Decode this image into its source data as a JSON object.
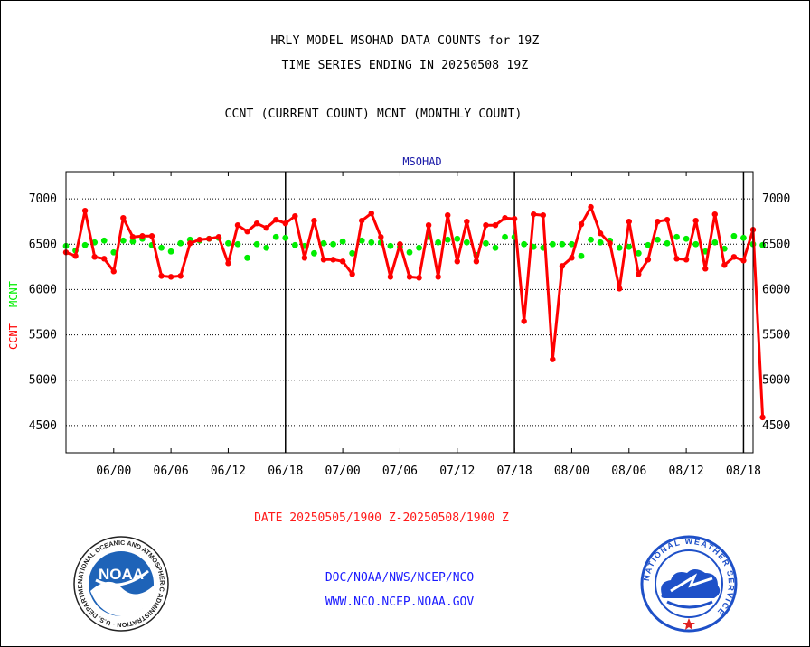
{
  "header": {
    "line1": "HRLY MODEL MSOHAD DATA COUNTS for 19Z",
    "line2": "TIME SERIES ENDING IN 20250508 19Z",
    "line3": "CCNT (CURRENT COUNT) MCNT (MONTHLY COUNT)"
  },
  "footer": {
    "date_range": "DATE 20250505/1900 Z-20250508/1900 Z",
    "org_path": "DOC/NOAA/NWS/NCEP/NCO",
    "website": "WWW.NCO.NCEP.NOAA.GOV"
  },
  "logos": {
    "noaa_text": "NOAA",
    "noaa_ring_text": "NATIONAL OCEANIC AND ATMOSPHERIC ADMINISTRATION · U.S. DEPARTMENT OF COMMERCE",
    "nws_ring_text": "NATIONAL WEATHER SERVICE"
  },
  "colors": {
    "ccnt": "#ff0000",
    "mcnt": "#00ee00",
    "axis_text": "#000000",
    "link": "#1a1aff"
  },
  "chart_data": {
    "type": "line",
    "title": "MSOHAD",
    "xlabel": "",
    "ylabel_ccnt": "CCNT",
    "ylabel_mcnt": "MCNT",
    "ylim": [
      4200,
      7300
    ],
    "yticks": [
      4500,
      5000,
      5500,
      6000,
      6500,
      7000
    ],
    "xlim": [
      0,
      72
    ],
    "xticks": [
      {
        "x": 5,
        "label": "06/00"
      },
      {
        "x": 11,
        "label": "06/06"
      },
      {
        "x": 17,
        "label": "06/12"
      },
      {
        "x": 23,
        "label": "06/18"
      },
      {
        "x": 29,
        "label": "07/00"
      },
      {
        "x": 35,
        "label": "07/06"
      },
      {
        "x": 41,
        "label": "07/12"
      },
      {
        "x": 47,
        "label": "07/18"
      },
      {
        "x": 53,
        "label": "08/00"
      },
      {
        "x": 59,
        "label": "08/06"
      },
      {
        "x": 65,
        "label": "08/12"
      },
      {
        "x": 71,
        "label": "08/18"
      }
    ],
    "day_boundaries": [
      23,
      47,
      71
    ],
    "grid": true,
    "series": [
      {
        "name": "CCNT",
        "values": [
          6410,
          6370,
          6870,
          6360,
          6340,
          6200,
          6790,
          6580,
          6590,
          6590,
          6150,
          6140,
          6150,
          6510,
          6550,
          6560,
          6580,
          6290,
          6710,
          6640,
          6730,
          6680,
          6770,
          6730,
          6810,
          6350,
          6760,
          6330,
          6330,
          6310,
          6170,
          6760,
          6840,
          6580,
          6140,
          6500,
          6140,
          6130,
          6710,
          6140,
          6820,
          6310,
          6750,
          6310,
          6710,
          6710,
          6790,
          6780,
          5650,
          6830,
          6820,
          5230,
          6260,
          6350,
          6720,
          6910,
          6620,
          6510,
          6010,
          6750,
          6170,
          6330,
          6750,
          6770,
          6340,
          6330,
          6760,
          6230,
          6830,
          6270,
          6360,
          6320,
          6660,
          4590
        ]
      },
      {
        "name": "MCNT",
        "values": [
          6480,
          6430,
          6490,
          6520,
          6540,
          6410,
          6540,
          6530,
          6560,
          6490,
          6460,
          6420,
          6510,
          6550,
          6540,
          6560,
          6570,
          6510,
          6500,
          6350,
          6500,
          6460,
          6580,
          6570,
          6490,
          6480,
          6400,
          6510,
          6500,
          6530,
          6400,
          6540,
          6520,
          6520,
          6480,
          6470,
          6410,
          6460,
          6580,
          6520,
          6550,
          6560,
          6520,
          6380,
          6510,
          6460,
          6580,
          6580,
          6500,
          6470,
          6460,
          6500,
          6500,
          6500,
          6370,
          6550,
          6520,
          6540,
          6460,
          6470,
          6400,
          6490,
          6550,
          6510,
          6580,
          6560,
          6500,
          6420,
          6520,
          6450,
          6590,
          6570,
          6500,
          6490
        ]
      }
    ]
  }
}
